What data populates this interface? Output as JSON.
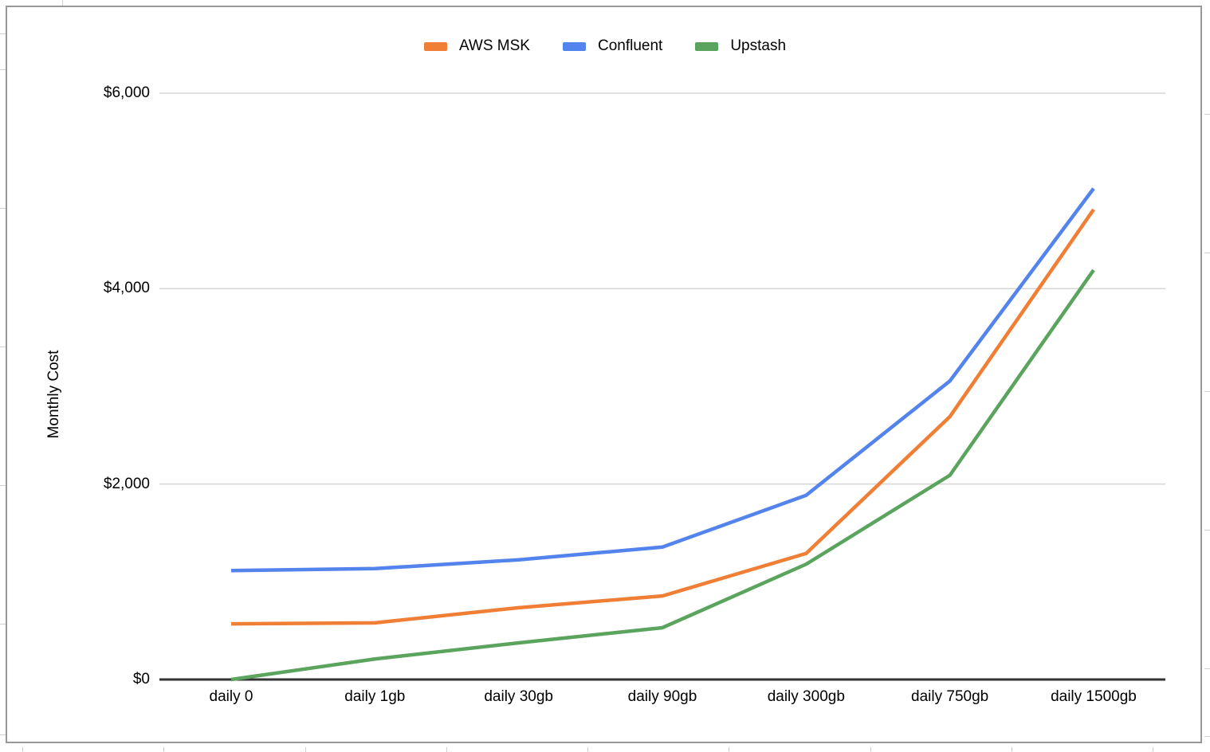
{
  "chart_data": {
    "type": "line",
    "title": "",
    "ylabel": "Monthly Cost",
    "xlabel": "",
    "categories": [
      "daily 0",
      "daily 1gb",
      "daily 30gb",
      "daily 90gb",
      "daily 300gb",
      "daily 750gb",
      "daily 1500gb"
    ],
    "series": [
      {
        "name": "AWS MSK",
        "color": "#F07E35",
        "values": [
          570,
          580,
          735,
          855,
          1290,
          2690,
          4810
        ]
      },
      {
        "name": "Confluent",
        "color": "#5383EC",
        "values": [
          1115,
          1135,
          1225,
          1355,
          1885,
          3055,
          5025
        ]
      },
      {
        "name": "Upstash",
        "color": "#5BA45E",
        "values": [
          0,
          210,
          375,
          530,
          1180,
          2090,
          4190
        ]
      }
    ],
    "yticks": [
      {
        "value": 0,
        "label": "$0"
      },
      {
        "value": 2000,
        "label": "$2,000"
      },
      {
        "value": 4000,
        "label": "$4,000"
      },
      {
        "value": 6000,
        "label": "$6,000"
      }
    ],
    "ylim": [
      0,
      6000
    ],
    "grid": "horizontal",
    "legend_position": "top",
    "axis_color": "#333333",
    "gridline_color": "#d5d5d5"
  }
}
